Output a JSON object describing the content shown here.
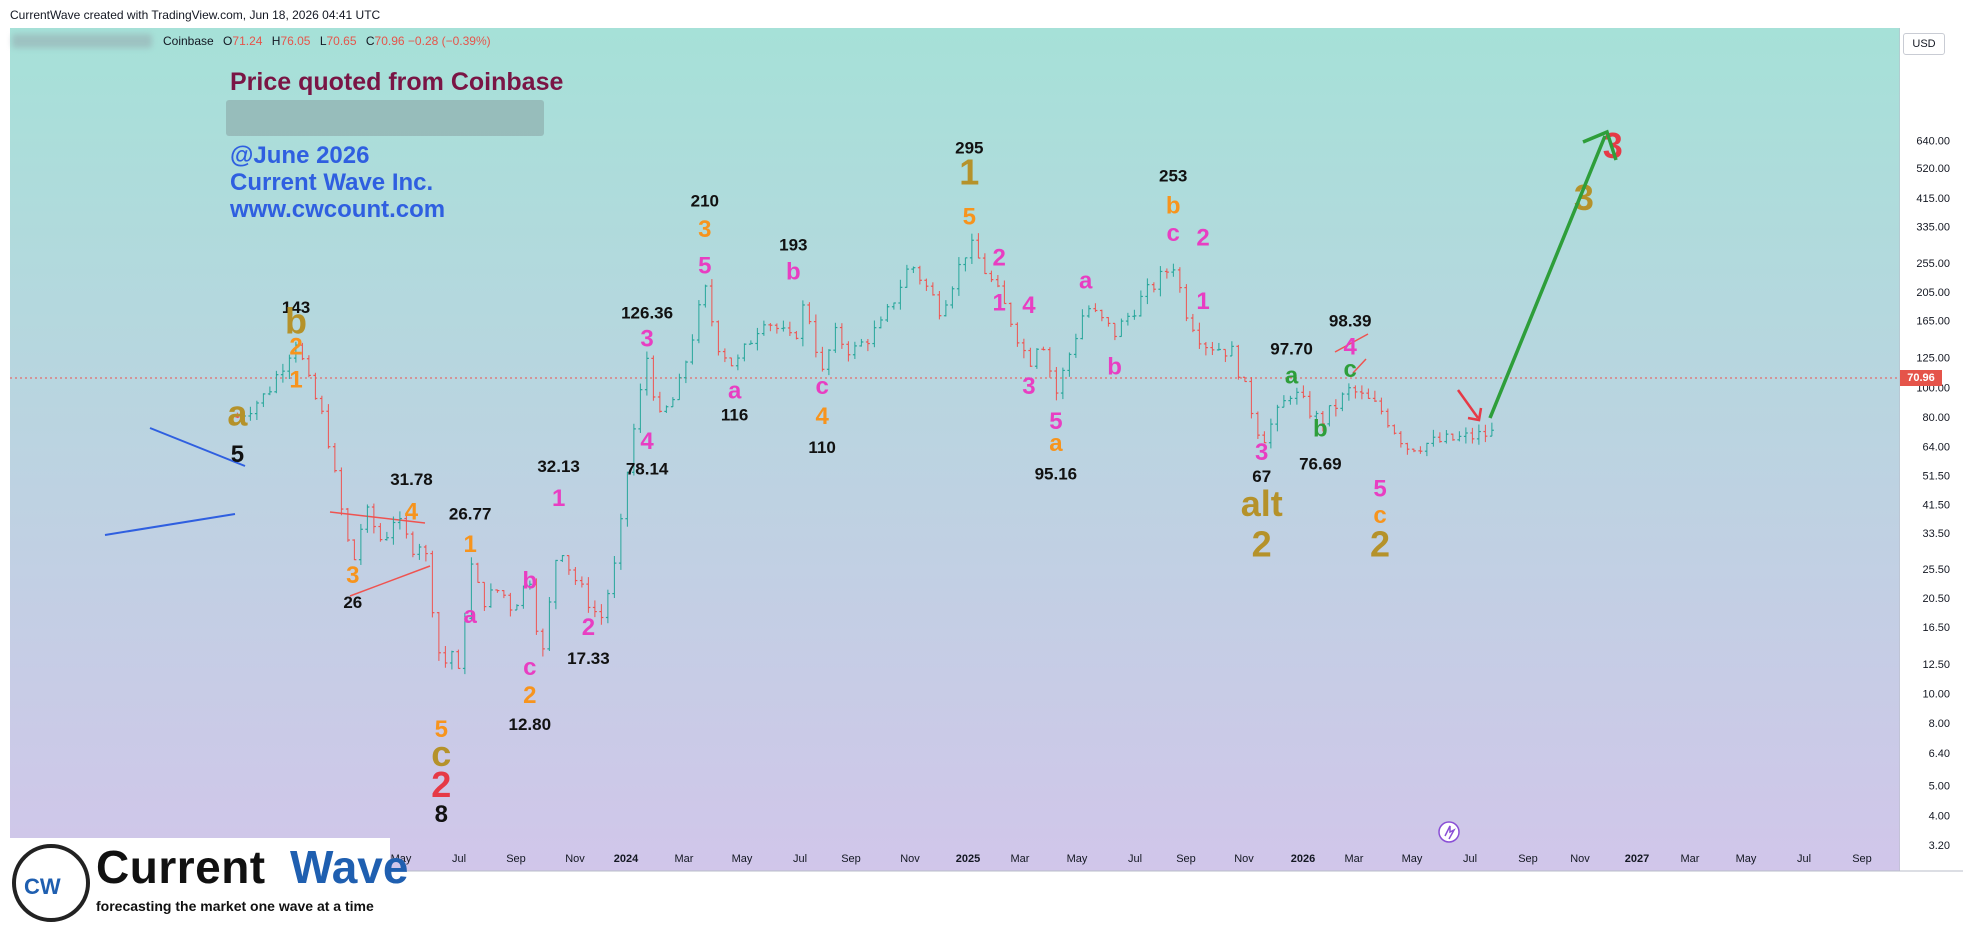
{
  "header": {
    "credit": "CurrentWave created with TradingView.com, Jun 18, 2026 04:41 UTC",
    "exchange": "Coinbase",
    "ohlc": {
      "o_label": "O",
      "o": "71.24",
      "h_label": "H",
      "h": "76.05",
      "l_label": "L",
      "l": "70.65",
      "c_label": "C",
      "c": "70.96",
      "change": "−0.28 (−0.39%)"
    },
    "currency": "USD"
  },
  "annotations": {
    "price_note": "Price quoted from Coinbase",
    "date_note": "@June 2026",
    "company": "Current Wave Inc.",
    "website": "www.cwcount.com"
  },
  "brand": {
    "mark": "CW",
    "name_part1": "Current ",
    "name_part2": "Wave",
    "tagline": "forecasting the market one wave at a time"
  },
  "colors": {
    "bg_top": "#a6e1d8",
    "bg_bottom": "#d1c6ea",
    "candle_up": "#26a69a",
    "candle_down": "#ef5350",
    "wave_black": "#111111",
    "wave_orange": "#f7941d",
    "wave_magenta": "#e83ec2",
    "wave_olive": "#b5922a",
    "wave_red": "#e63946",
    "wave_green": "#2e9e3a",
    "wave_blue": "#2f5fe0"
  },
  "chart_data": {
    "type": "candlestick",
    "scale": "log",
    "y_ticks": [
      640,
      520,
      415,
      335,
      255,
      205,
      165,
      125,
      100,
      80,
      64,
      51.5,
      41.5,
      33.5,
      25.5,
      20.5,
      16.5,
      12.5,
      10,
      8,
      6.4,
      5,
      4,
      3.2
    ],
    "y_tick_labels": [
      "640.00",
      "520.00",
      "415.00",
      "335.00",
      "255.00",
      "205.00",
      "165.00",
      "125.00",
      "100.00",
      "80.00",
      "64.00",
      "51.50",
      "41.50",
      "33.50",
      "25.50",
      "20.50",
      "16.50",
      "12.50",
      "10.00",
      "8.00",
      "6.40",
      "5.00",
      "4.00",
      "3.20"
    ],
    "x_ticks": [
      "May",
      "Jul",
      "Sep",
      "Nov",
      "2024",
      "Mar",
      "May",
      "Jul",
      "Sep",
      "Nov",
      "2025",
      "Mar",
      "May",
      "Jul",
      "Sep",
      "Nov",
      "2026",
      "Mar",
      "May",
      "Jul",
      "Sep",
      "Nov",
      "2027",
      "Mar",
      "May",
      "Jul",
      "Sep"
    ],
    "last_price": "70.96",
    "price_path": [
      [
        "2022-11",
        80
      ],
      [
        "2022-12",
        95
      ],
      [
        "2023-01",
        143
      ],
      [
        "2023-01",
        105
      ],
      [
        "2023-02",
        75
      ],
      [
        "2023-02",
        45
      ],
      [
        "2023-03",
        26
      ],
      [
        "2023-03",
        40
      ],
      [
        "2023-04",
        31
      ],
      [
        "2023-04",
        38
      ],
      [
        "2023-05",
        30
      ],
      [
        "2023-05",
        31.78
      ],
      [
        "2023-06",
        12
      ],
      [
        "2023-06",
        14
      ],
      [
        "2023-06",
        8
      ],
      [
        "2023-07",
        26.77
      ],
      [
        "2023-07",
        20
      ],
      [
        "2023-08",
        22
      ],
      [
        "2023-08",
        19
      ],
      [
        "2023-09",
        24
      ],
      [
        "2023-09",
        12.8
      ],
      [
        "2023-10",
        32.13
      ],
      [
        "2023-10",
        25
      ],
      [
        "2023-11",
        20
      ],
      [
        "2023-11",
        17.33
      ],
      [
        "2023-12",
        28
      ],
      [
        "2023-12",
        60
      ],
      [
        "2024-01",
        126.36
      ],
      [
        "2024-01",
        78.14
      ],
      [
        "2024-02",
        95
      ],
      [
        "2024-03",
        210
      ],
      [
        "2024-03",
        140
      ],
      [
        "2024-04",
        116
      ],
      [
        "2024-05",
        170
      ],
      [
        "2024-06",
        140
      ],
      [
        "2024-06",
        193
      ],
      [
        "2024-07",
        110
      ],
      [
        "2024-07",
        150
      ],
      [
        "2024-08",
        130
      ],
      [
        "2024-09",
        160
      ],
      [
        "2024-10",
        255
      ],
      [
        "2024-11",
        180
      ],
      [
        "2024-12",
        295
      ],
      [
        "2025-01",
        200
      ],
      [
        "2025-01",
        165
      ],
      [
        "2025-02",
        120
      ],
      [
        "2025-02",
        150
      ],
      [
        "2025-03",
        95.16
      ],
      [
        "2025-04",
        185
      ],
      [
        "2025-05",
        150
      ],
      [
        "2025-06",
        200
      ],
      [
        "2025-07",
        253
      ],
      [
        "2025-07",
        180
      ],
      [
        "2025-08",
        140
      ],
      [
        "2025-09",
        130
      ],
      [
        "2025-10",
        67
      ],
      [
        "2025-11",
        97.7
      ],
      [
        "2025-12",
        76.69
      ],
      [
        "2026-01",
        98.39
      ],
      [
        "2026-02",
        85
      ],
      [
        "2026-03",
        64
      ],
      [
        "2026-06",
        70.96
      ]
    ],
    "projection": {
      "from_price": 57,
      "to_price": 415,
      "label": "3"
    }
  },
  "wave_labels": [
    {
      "t": "a",
      "c": "wave_olive",
      "date": "2022-11",
      "p": 75
    },
    {
      "t": "5",
      "c": "wave_black",
      "date": "2022-11",
      "p": 57
    },
    {
      "t": "143",
      "c": "wave_black",
      "date": "2023-01",
      "p": 175
    },
    {
      "t": "b",
      "c": "wave_olive",
      "date": "2023-01",
      "p": 150
    },
    {
      "t": "2",
      "c": "wave_orange",
      "date": "2023-01",
      "p": 128
    },
    {
      "t": "1",
      "c": "wave_orange",
      "date": "2023-01",
      "p": 100
    },
    {
      "t": "3",
      "c": "wave_orange",
      "date": "2023-03",
      "p": 23
    },
    {
      "t": "26",
      "c": "wave_black",
      "date": "2023-03",
      "p": 19
    },
    {
      "t": "31.78",
      "c": "wave_black",
      "date": "2023-05",
      "p": 48
    },
    {
      "t": "4",
      "c": "wave_orange",
      "date": "2023-05",
      "p": 37
    },
    {
      "t": "5",
      "c": "wave_orange",
      "date": "2023-06",
      "p": 7.2
    },
    {
      "t": "c",
      "c": "wave_olive",
      "date": "2023-06",
      "p": 5.8
    },
    {
      "t": "2",
      "c": "wave_red",
      "date": "2023-06",
      "p": 4.6
    },
    {
      "t": "8",
      "c": "wave_black",
      "date": "2023-06",
      "p": 3.8
    },
    {
      "t": "26.77",
      "c": "wave_black",
      "date": "2023-07",
      "p": 37
    },
    {
      "t": "1",
      "c": "wave_orange",
      "date": "2023-07",
      "p": 29
    },
    {
      "t": "a",
      "c": "wave_magenta",
      "date": "2023-07",
      "p": 17
    },
    {
      "t": "b",
      "c": "wave_magenta",
      "date": "2023-09",
      "p": 22
    },
    {
      "t": "c",
      "c": "wave_magenta",
      "date": "2023-09",
      "p": 11.5
    },
    {
      "t": "2",
      "c": "wave_orange",
      "date": "2023-09",
      "p": 9.3
    },
    {
      "t": "12.80",
      "c": "wave_black",
      "date": "2023-09",
      "p": 7.6
    },
    {
      "t": "32.13",
      "c": "wave_black",
      "date": "2023-10",
      "p": 53
    },
    {
      "t": "1",
      "c": "wave_magenta",
      "date": "2023-10",
      "p": 41
    },
    {
      "t": "2",
      "c": "wave_magenta",
      "date": "2023-11",
      "p": 15.5
    },
    {
      "t": "17.33",
      "c": "wave_black",
      "date": "2023-11",
      "p": 12.5
    },
    {
      "t": "126.36",
      "c": "wave_black",
      "date": "2024-01",
      "p": 168
    },
    {
      "t": "3",
      "c": "wave_magenta",
      "date": "2024-01",
      "p": 136
    },
    {
      "t": "4",
      "c": "wave_magenta",
      "date": "2024-01",
      "p": 63
    },
    {
      "t": "78.14",
      "c": "wave_black",
      "date": "2024-01",
      "p": 52
    },
    {
      "t": "210",
      "c": "wave_black",
      "date": "2024-03",
      "p": 390
    },
    {
      "t": "3",
      "c": "wave_orange",
      "date": "2024-03",
      "p": 310
    },
    {
      "t": "5",
      "c": "wave_magenta",
      "date": "2024-03",
      "p": 235
    },
    {
      "t": "a",
      "c": "wave_magenta",
      "date": "2024-04",
      "p": 92
    },
    {
      "t": "116",
      "c": "wave_black",
      "date": "2024-04",
      "p": 78
    },
    {
      "t": "193",
      "c": "wave_black",
      "date": "2024-06",
      "p": 280
    },
    {
      "t": "b",
      "c": "wave_magenta",
      "date": "2024-06",
      "p": 225
    },
    {
      "t": "c",
      "c": "wave_magenta",
      "date": "2024-07",
      "p": 95
    },
    {
      "t": "4",
      "c": "wave_orange",
      "date": "2024-07",
      "p": 76
    },
    {
      "t": "110",
      "c": "wave_black",
      "date": "2024-07",
      "p": 61
    },
    {
      "t": "295",
      "c": "wave_black",
      "date": "2024-12",
      "p": 580
    },
    {
      "t": "1",
      "c": "wave_olive",
      "date": "2024-12",
      "p": 460
    },
    {
      "t": "5",
      "c": "wave_orange",
      "date": "2024-12",
      "p": 340
    },
    {
      "t": "2",
      "c": "wave_magenta",
      "date": "2025-01",
      "p": 250
    },
    {
      "t": "1",
      "c": "wave_magenta",
      "date": "2025-01",
      "p": 178
    },
    {
      "t": "4",
      "c": "wave_magenta",
      "date": "2025-02",
      "p": 175
    },
    {
      "t": "3",
      "c": "wave_magenta",
      "date": "2025-02",
      "p": 95
    },
    {
      "t": "5",
      "c": "wave_magenta",
      "date": "2025-03",
      "p": 73
    },
    {
      "t": "a",
      "c": "wave_orange",
      "date": "2025-03",
      "p": 62
    },
    {
      "t": "95.16",
      "c": "wave_black",
      "date": "2025-03",
      "p": 50
    },
    {
      "t": "a",
      "c": "wave_magenta",
      "date": "2025-04",
      "p": 210
    },
    {
      "t": "b",
      "c": "wave_magenta",
      "date": "2025-05",
      "p": 110
    },
    {
      "t": "253",
      "c": "wave_black",
      "date": "2025-07",
      "p": 470
    },
    {
      "t": "b",
      "c": "wave_orange",
      "date": "2025-07",
      "p": 370
    },
    {
      "t": "c",
      "c": "wave_magenta",
      "date": "2025-07",
      "p": 300
    },
    {
      "t": "2",
      "c": "wave_magenta",
      "date": "2025-08",
      "p": 290
    },
    {
      "t": "1",
      "c": "wave_magenta",
      "date": "2025-08",
      "p": 180
    },
    {
      "t": "97.70",
      "c": "wave_black",
      "date": "2025-11",
      "p": 128
    },
    {
      "t": "a",
      "c": "wave_green",
      "date": "2025-11",
      "p": 103
    },
    {
      "t": "3",
      "c": "wave_magenta",
      "date": "2025-10",
      "p": 58
    },
    {
      "t": "67",
      "c": "wave_black",
      "date": "2025-10",
      "p": 49
    },
    {
      "t": "alt",
      "c": "wave_olive",
      "date": "2025-10",
      "p": 38
    },
    {
      "t": "2",
      "c": "wave_olive",
      "date": "2025-10",
      "p": 28
    },
    {
      "t": "b",
      "c": "wave_green",
      "date": "2025-12",
      "p": 69
    },
    {
      "t": "76.69",
      "c": "wave_black",
      "date": "2025-12",
      "p": 54
    },
    {
      "t": "98.39",
      "c": "wave_black",
      "date": "2026-01",
      "p": 158
    },
    {
      "t": "4",
      "c": "wave_magenta",
      "date": "2026-01",
      "p": 128
    },
    {
      "t": "c",
      "c": "wave_green",
      "date": "2026-01",
      "p": 108
    },
    {
      "t": "5",
      "c": "wave_magenta",
      "date": "2026-02",
      "p": 44
    },
    {
      "t": "c",
      "c": "wave_orange",
      "date": "2026-02",
      "p": 36
    },
    {
      "t": "2",
      "c": "wave_olive",
      "date": "2026-02",
      "p": 28
    },
    {
      "t": "3",
      "c": "wave_olive",
      "date": "2026-09",
      "p": 380
    },
    {
      "t": "3",
      "c": "wave_red",
      "date": "2026-10",
      "p": 560
    }
  ]
}
